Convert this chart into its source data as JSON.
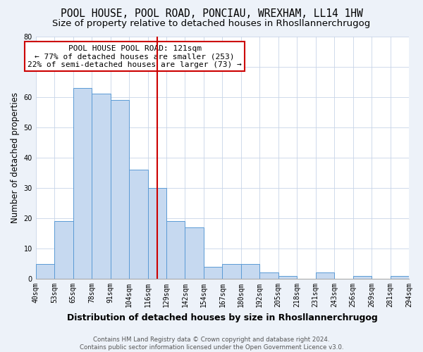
{
  "title": "POOL HOUSE, POOL ROAD, PONCIAU, WREXHAM, LL14 1HW",
  "subtitle": "Size of property relative to detached houses in Rhosllannerchrugog",
  "xlabel": "Distribution of detached houses by size in Rhosllannerchrugog",
  "ylabel": "Number of detached properties",
  "bin_labels": [
    "40sqm",
    "53sqm",
    "65sqm",
    "78sqm",
    "91sqm",
    "104sqm",
    "116sqm",
    "129sqm",
    "142sqm",
    "154sqm",
    "167sqm",
    "180sqm",
    "192sqm",
    "205sqm",
    "218sqm",
    "231sqm",
    "243sqm",
    "256sqm",
    "269sqm",
    "281sqm",
    "294sqm"
  ],
  "bar_values": [
    5,
    19,
    63,
    61,
    59,
    36,
    30,
    19,
    17,
    4,
    5,
    5,
    2,
    1,
    0,
    2,
    0,
    1,
    0,
    1
  ],
  "bar_color": "#c6d9f0",
  "bar_edge_color": "#5b9bd5",
  "vline_color": "#cc0000",
  "vline_x": 6.5,
  "annotation_title": "POOL HOUSE POOL ROAD: 121sqm",
  "annotation_line1": "← 77% of detached houses are smaller (253)",
  "annotation_line2": "22% of semi-detached houses are larger (73) →",
  "annotation_box_color": "#ffffff",
  "annotation_box_edge": "#cc0000",
  "ylim": [
    0,
    80
  ],
  "yticks": [
    0,
    10,
    20,
    30,
    40,
    50,
    60,
    70,
    80
  ],
  "footer_line1": "Contains HM Land Registry data © Crown copyright and database right 2024.",
  "footer_line2": "Contains public sector information licensed under the Open Government Licence v3.0.",
  "bg_color": "#edf2f9",
  "plot_bg_color": "#ffffff",
  "title_fontsize": 10.5,
  "subtitle_fontsize": 9.5,
  "axis_label_fontsize": 8.5,
  "tick_fontsize": 7,
  "footer_fontsize": 6.2,
  "annotation_fontsize": 8
}
